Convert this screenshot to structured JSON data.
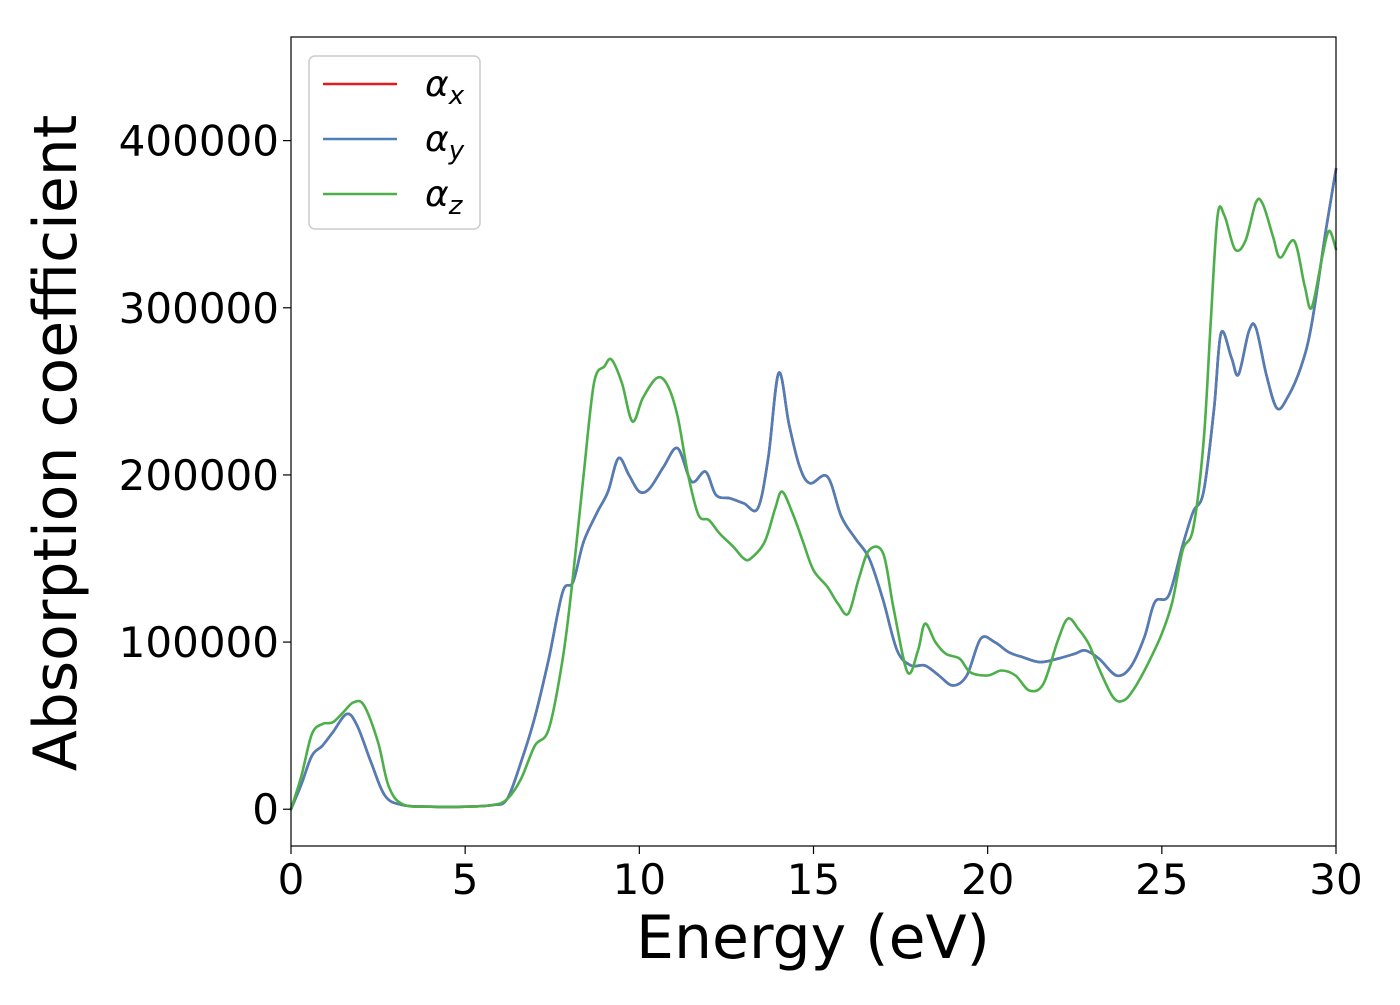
{
  "chart_data": {
    "type": "line",
    "title": "",
    "xlabel": "Energy (eV)",
    "ylabel": "Absorption coefficient",
    "xlim": [
      0,
      30
    ],
    "ylim": [
      -22000,
      462000
    ],
    "x_ticks": [
      0,
      5,
      10,
      15,
      20,
      25,
      30
    ],
    "y_ticks": [
      0,
      100000,
      200000,
      300000,
      400000
    ],
    "grid": false,
    "legend": "top-left",
    "series": [
      {
        "name": "α_x",
        "legend_base": "α",
        "legend_sub": "x",
        "color": "#e41a1c",
        "points": [
          [
            0,
            0
          ],
          [
            0.3,
            15000
          ],
          [
            0.6,
            32000
          ],
          [
            0.9,
            38000
          ],
          [
            1.2,
            46000
          ],
          [
            1.6,
            57000
          ],
          [
            1.9,
            50000
          ],
          [
            2.3,
            28000
          ],
          [
            2.7,
            8000
          ],
          [
            3.2,
            2500
          ],
          [
            4.0,
            1500
          ],
          [
            5.0,
            1500
          ],
          [
            5.8,
            2500
          ],
          [
            6.2,
            6000
          ],
          [
            6.6,
            28000
          ],
          [
            7.0,
            55000
          ],
          [
            7.4,
            90000
          ],
          [
            7.8,
            130000
          ],
          [
            8.1,
            136000
          ],
          [
            8.4,
            160000
          ],
          [
            8.8,
            178000
          ],
          [
            9.1,
            190000
          ],
          [
            9.4,
            210000
          ],
          [
            9.7,
            200000
          ],
          [
            10.0,
            190000
          ],
          [
            10.3,
            192000
          ],
          [
            10.7,
            205000
          ],
          [
            11.1,
            216000
          ],
          [
            11.5,
            196000
          ],
          [
            11.9,
            202000
          ],
          [
            12.2,
            188000
          ],
          [
            12.6,
            186000
          ],
          [
            13.0,
            183000
          ],
          [
            13.4,
            180000
          ],
          [
            13.7,
            210000
          ],
          [
            14.0,
            261000
          ],
          [
            14.3,
            230000
          ],
          [
            14.6,
            205000
          ],
          [
            14.9,
            195000
          ],
          [
            15.4,
            199000
          ],
          [
            15.8,
            175000
          ],
          [
            16.2,
            162000
          ],
          [
            16.6,
            150000
          ],
          [
            17.0,
            125000
          ],
          [
            17.4,
            95000
          ],
          [
            17.8,
            86000
          ],
          [
            18.2,
            86000
          ],
          [
            18.6,
            80000
          ],
          [
            19.0,
            74000
          ],
          [
            19.4,
            80000
          ],
          [
            19.8,
            102000
          ],
          [
            20.2,
            100000
          ],
          [
            20.6,
            94000
          ],
          [
            21.0,
            91000
          ],
          [
            21.5,
            88000
          ],
          [
            22.0,
            90000
          ],
          [
            22.5,
            93000
          ],
          [
            22.8,
            95000
          ],
          [
            23.2,
            90000
          ],
          [
            23.7,
            80000
          ],
          [
            24.1,
            85000
          ],
          [
            24.5,
            103000
          ],
          [
            24.8,
            124000
          ],
          [
            25.2,
            128000
          ],
          [
            25.6,
            158000
          ],
          [
            25.9,
            178000
          ],
          [
            26.2,
            190000
          ],
          [
            26.5,
            240000
          ],
          [
            26.7,
            285000
          ],
          [
            27.0,
            270000
          ],
          [
            27.2,
            260000
          ],
          [
            27.5,
            286000
          ],
          [
            27.7,
            288000
          ],
          [
            28.0,
            260000
          ],
          [
            28.3,
            240000
          ],
          [
            28.6,
            246000
          ],
          [
            29.0,
            265000
          ],
          [
            29.3,
            290000
          ],
          [
            29.7,
            345000
          ],
          [
            30.0,
            383000
          ]
        ]
      },
      {
        "name": "α_y",
        "legend_base": "α",
        "legend_sub": "y",
        "color": "#4e7fb8",
        "points": [
          [
            0,
            0
          ],
          [
            0.3,
            15000
          ],
          [
            0.6,
            32000
          ],
          [
            0.9,
            38000
          ],
          [
            1.2,
            46000
          ],
          [
            1.6,
            57000
          ],
          [
            1.9,
            50000
          ],
          [
            2.3,
            28000
          ],
          [
            2.7,
            8000
          ],
          [
            3.2,
            2500
          ],
          [
            4.0,
            1500
          ],
          [
            5.0,
            1500
          ],
          [
            5.8,
            2500
          ],
          [
            6.2,
            6000
          ],
          [
            6.6,
            28000
          ],
          [
            7.0,
            55000
          ],
          [
            7.4,
            90000
          ],
          [
            7.8,
            130000
          ],
          [
            8.1,
            136000
          ],
          [
            8.4,
            160000
          ],
          [
            8.8,
            178000
          ],
          [
            9.1,
            190000
          ],
          [
            9.4,
            210000
          ],
          [
            9.7,
            200000
          ],
          [
            10.0,
            190000
          ],
          [
            10.3,
            192000
          ],
          [
            10.7,
            205000
          ],
          [
            11.1,
            216000
          ],
          [
            11.5,
            196000
          ],
          [
            11.9,
            202000
          ],
          [
            12.2,
            188000
          ],
          [
            12.6,
            186000
          ],
          [
            13.0,
            183000
          ],
          [
            13.4,
            180000
          ],
          [
            13.7,
            210000
          ],
          [
            14.0,
            261000
          ],
          [
            14.3,
            230000
          ],
          [
            14.6,
            205000
          ],
          [
            14.9,
            195000
          ],
          [
            15.4,
            199000
          ],
          [
            15.8,
            175000
          ],
          [
            16.2,
            162000
          ],
          [
            16.6,
            150000
          ],
          [
            17.0,
            125000
          ],
          [
            17.4,
            95000
          ],
          [
            17.8,
            86000
          ],
          [
            18.2,
            86000
          ],
          [
            18.6,
            80000
          ],
          [
            19.0,
            74000
          ],
          [
            19.4,
            80000
          ],
          [
            19.8,
            102000
          ],
          [
            20.2,
            100000
          ],
          [
            20.6,
            94000
          ],
          [
            21.0,
            91000
          ],
          [
            21.5,
            88000
          ],
          [
            22.0,
            90000
          ],
          [
            22.5,
            93000
          ],
          [
            22.8,
            95000
          ],
          [
            23.2,
            90000
          ],
          [
            23.7,
            80000
          ],
          [
            24.1,
            85000
          ],
          [
            24.5,
            103000
          ],
          [
            24.8,
            124000
          ],
          [
            25.2,
            128000
          ],
          [
            25.6,
            158000
          ],
          [
            25.9,
            178000
          ],
          [
            26.2,
            190000
          ],
          [
            26.5,
            240000
          ],
          [
            26.7,
            285000
          ],
          [
            27.0,
            270000
          ],
          [
            27.2,
            260000
          ],
          [
            27.5,
            286000
          ],
          [
            27.7,
            288000
          ],
          [
            28.0,
            260000
          ],
          [
            28.3,
            240000
          ],
          [
            28.6,
            246000
          ],
          [
            29.0,
            265000
          ],
          [
            29.3,
            290000
          ],
          [
            29.7,
            345000
          ],
          [
            30.0,
            383000
          ]
        ]
      },
      {
        "name": "α_z",
        "legend_base": "α",
        "legend_sub": "z",
        "color": "#4daf4a",
        "points": [
          [
            0,
            0
          ],
          [
            0.3,
            20000
          ],
          [
            0.6,
            45000
          ],
          [
            0.9,
            51000
          ],
          [
            1.2,
            52000
          ],
          [
            1.5,
            58000
          ],
          [
            1.8,
            64000
          ],
          [
            2.1,
            62000
          ],
          [
            2.5,
            40000
          ],
          [
            2.8,
            14000
          ],
          [
            3.2,
            3000
          ],
          [
            4.0,
            1500
          ],
          [
            5.0,
            1500
          ],
          [
            5.8,
            2500
          ],
          [
            6.2,
            6000
          ],
          [
            6.6,
            18000
          ],
          [
            7.0,
            38000
          ],
          [
            7.4,
            48000
          ],
          [
            7.8,
            90000
          ],
          [
            8.1,
            140000
          ],
          [
            8.4,
            200000
          ],
          [
            8.7,
            255000
          ],
          [
            9.0,
            265000
          ],
          [
            9.2,
            269000
          ],
          [
            9.5,
            255000
          ],
          [
            9.8,
            232000
          ],
          [
            10.1,
            246000
          ],
          [
            10.5,
            258000
          ],
          [
            10.8,
            254000
          ],
          [
            11.1,
            235000
          ],
          [
            11.4,
            200000
          ],
          [
            11.7,
            176000
          ],
          [
            12.0,
            173000
          ],
          [
            12.3,
            165000
          ],
          [
            12.7,
            157000
          ],
          [
            13.0,
            150000
          ],
          [
            13.2,
            150000
          ],
          [
            13.6,
            160000
          ],
          [
            13.9,
            180000
          ],
          [
            14.1,
            190000
          ],
          [
            14.4,
            177000
          ],
          [
            14.7,
            160000
          ],
          [
            15.0,
            143000
          ],
          [
            15.4,
            133000
          ],
          [
            15.7,
            123000
          ],
          [
            16.0,
            117000
          ],
          [
            16.3,
            138000
          ],
          [
            16.6,
            155000
          ],
          [
            17.0,
            153000
          ],
          [
            17.3,
            120000
          ],
          [
            17.7,
            82000
          ],
          [
            18.0,
            95000
          ],
          [
            18.2,
            111000
          ],
          [
            18.5,
            100000
          ],
          [
            18.8,
            93000
          ],
          [
            19.2,
            90000
          ],
          [
            19.5,
            82000
          ],
          [
            20.0,
            80000
          ],
          [
            20.4,
            83000
          ],
          [
            20.8,
            80000
          ],
          [
            21.2,
            71000
          ],
          [
            21.6,
            75000
          ],
          [
            22.0,
            100000
          ],
          [
            22.3,
            114000
          ],
          [
            22.6,
            108000
          ],
          [
            22.9,
            99000
          ],
          [
            23.2,
            84000
          ],
          [
            23.6,
            67000
          ],
          [
            23.9,
            65000
          ],
          [
            24.2,
            72000
          ],
          [
            24.6,
            87000
          ],
          [
            25.0,
            105000
          ],
          [
            25.3,
            124000
          ],
          [
            25.6,
            155000
          ],
          [
            25.9,
            168000
          ],
          [
            26.2,
            220000
          ],
          [
            26.4,
            290000
          ],
          [
            26.6,
            355000
          ],
          [
            26.8,
            355000
          ],
          [
            27.1,
            335000
          ],
          [
            27.4,
            340000
          ],
          [
            27.7,
            363000
          ],
          [
            27.9,
            362000
          ],
          [
            28.2,
            342000
          ],
          [
            28.4,
            330000
          ],
          [
            28.8,
            340000
          ],
          [
            29.1,
            313000
          ],
          [
            29.3,
            300000
          ],
          [
            29.6,
            330000
          ],
          [
            29.8,
            346000
          ],
          [
            30.0,
            335000
          ]
        ]
      }
    ]
  }
}
